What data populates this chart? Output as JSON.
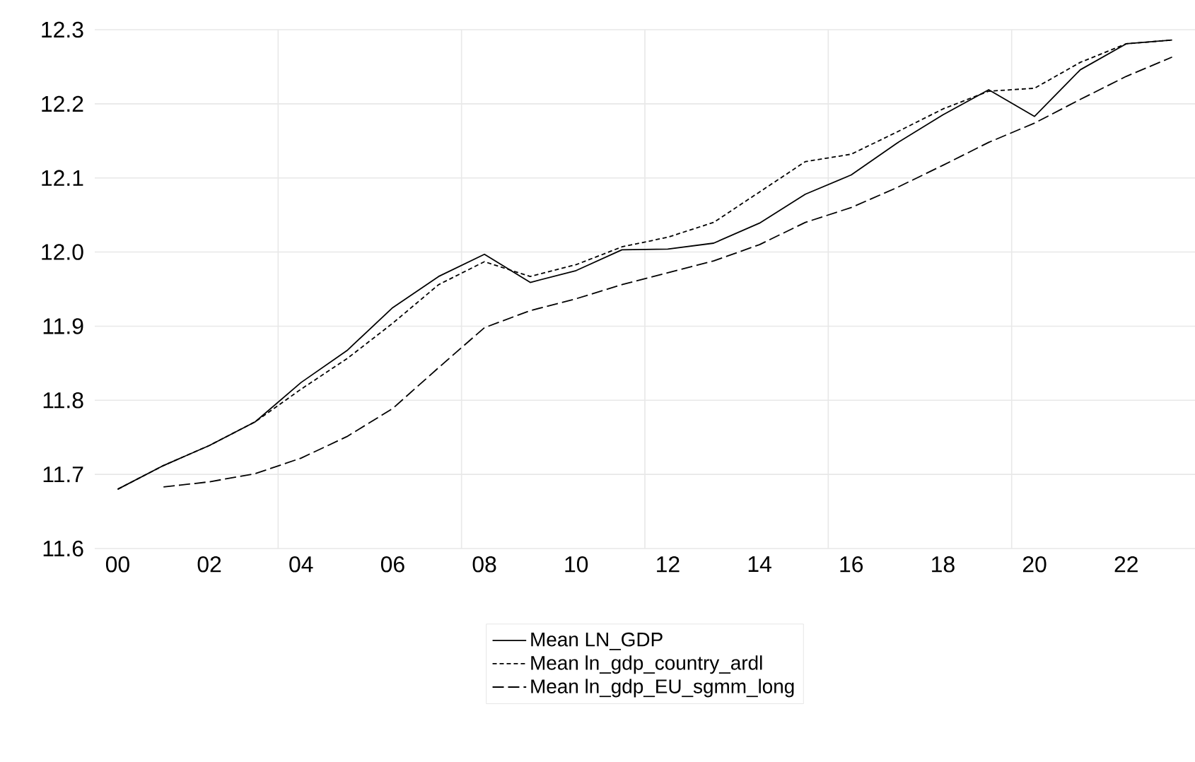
{
  "chart_data": {
    "type": "line",
    "x": [
      2000,
      2001,
      2002,
      2003,
      2004,
      2005,
      2006,
      2007,
      2008,
      2009,
      2010,
      2011,
      2012,
      2013,
      2014,
      2015,
      2016,
      2017,
      2018,
      2019,
      2020,
      2021,
      2022,
      2023
    ],
    "series": [
      {
        "name": "Mean LN_GDP",
        "color": "#000000",
        "line_style": "solid",
        "values": [
          11.68,
          11.712,
          11.739,
          11.771,
          11.824,
          11.867,
          11.925,
          11.967,
          11.997,
          11.959,
          11.975,
          12.003,
          12.004,
          12.012,
          12.039,
          12.078,
          12.104,
          12.147,
          12.185,
          12.219,
          12.183,
          12.246,
          12.281,
          12.286
        ]
      },
      {
        "name": "Mean ln_gdp_country_ardl",
        "color": "#000000",
        "line_style": "dashed",
        "values": [
          11.68,
          11.712,
          11.739,
          11.771,
          11.815,
          11.856,
          11.904,
          11.956,
          11.987,
          11.967,
          11.983,
          12.007,
          12.02,
          12.04,
          12.081,
          12.122,
          12.132,
          12.162,
          12.193,
          12.217,
          12.221,
          12.256,
          12.281,
          12.286
        ]
      },
      {
        "name": "Mean ln_gdp_EU_sgmm_long",
        "color": "#000000",
        "line_style": "dashed",
        "values": [
          null,
          11.683,
          11.69,
          11.701,
          11.722,
          11.751,
          11.789,
          11.844,
          11.898,
          11.921,
          11.937,
          11.956,
          11.972,
          11.988,
          12.01,
          12.04,
          12.06,
          12.087,
          12.117,
          12.148,
          12.174,
          12.206,
          12.237,
          12.263
        ]
      }
    ],
    "xlim": [
      1999.5,
      2023.5
    ],
    "ylim": [
      11.6,
      12.3
    ],
    "xticks": [
      {
        "value": 2000,
        "label": "00"
      },
      {
        "value": 2002,
        "label": "02"
      },
      {
        "value": 2004,
        "label": "04"
      },
      {
        "value": 2006,
        "label": "06"
      },
      {
        "value": 2008,
        "label": "08"
      },
      {
        "value": 2010,
        "label": "10"
      },
      {
        "value": 2012,
        "label": "12"
      },
      {
        "value": 2014,
        "label": "14"
      },
      {
        "value": 2016,
        "label": "16"
      },
      {
        "value": 2018,
        "label": "18"
      },
      {
        "value": 2020,
        "label": "20"
      },
      {
        "value": 2022,
        "label": "22"
      },
      {
        "value": 2003.5,
        "label": null
      },
      {
        "value": 2007.5,
        "label": null
      },
      {
        "value": 2011.5,
        "label": null
      },
      {
        "value": 2015.5,
        "label": null
      },
      {
        "value": 2019.5,
        "label": null
      }
    ],
    "yticks": [
      11.6,
      11.7,
      11.8,
      11.9,
      {
        "value": 12.0,
        "label": "12.0"
      },
      12.1,
      12.2,
      12.3
    ],
    "grid": true,
    "legend": "bottom",
    "marker": "none"
  }
}
